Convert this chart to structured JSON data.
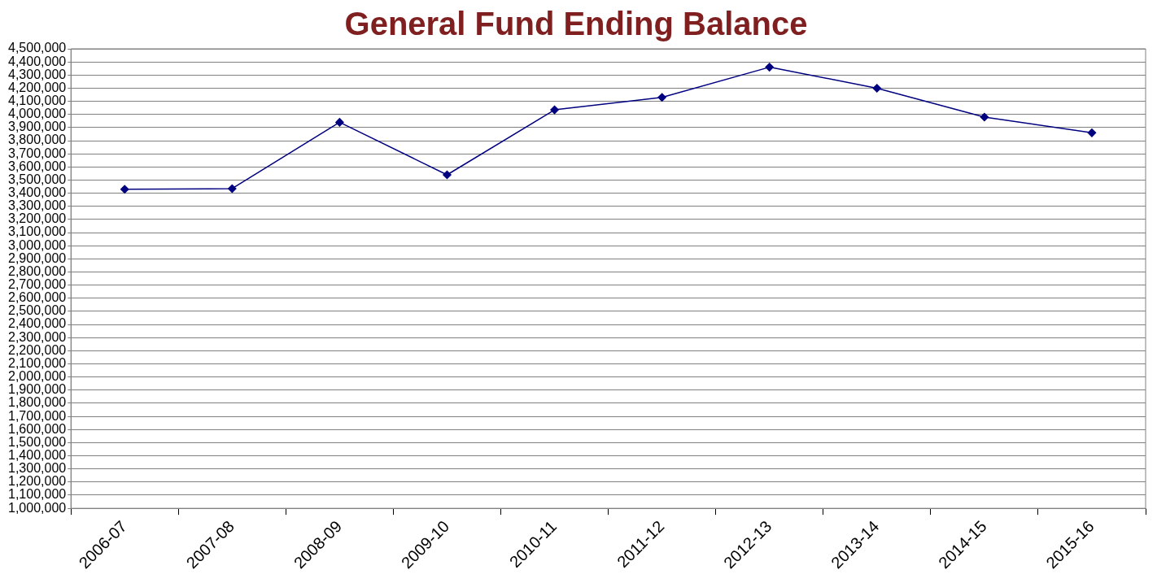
{
  "chart_data": {
    "type": "line",
    "title": "General Fund Ending Balance",
    "categories": [
      "2006-07",
      "2007-08",
      "2008-09",
      "2009-10",
      "2010-11",
      "2011-12",
      "2012-13",
      "2013-14",
      "2014-15",
      "2015-16"
    ],
    "series": [
      {
        "color": "#000080",
        "values": [
          3430000,
          3435000,
          3940000,
          3540000,
          4035000,
          4130000,
          4360000,
          4200000,
          3980000,
          3860000
        ]
      }
    ],
    "ylim": [
      1000000,
      4500000
    ],
    "yticks": [
      {
        "value": 1000000,
        "label": "1,000,000"
      },
      {
        "value": 1100000,
        "label": "1,100,000"
      },
      {
        "value": 1200000,
        "label": "1,200,000"
      },
      {
        "value": 1300000,
        "label": "1,300,000"
      },
      {
        "value": 1400000,
        "label": "1,400,000"
      },
      {
        "value": 1500000,
        "label": "1,500,000"
      },
      {
        "value": 1600000,
        "label": "1,600,000"
      },
      {
        "value": 1700000,
        "label": "1,700,000"
      },
      {
        "value": 1800000,
        "label": "1,800,000"
      },
      {
        "value": 1900000,
        "label": "1,900,000"
      },
      {
        "value": 2000000,
        "label": "2,000,000"
      },
      {
        "value": 2100000,
        "label": "2,100,000"
      },
      {
        "value": 2200000,
        "label": "2,200,000"
      },
      {
        "value": 2300000,
        "label": "2,300,000"
      },
      {
        "value": 2400000,
        "label": "2,400,000"
      },
      {
        "value": 2500000,
        "label": "2,500,000"
      },
      {
        "value": 2600000,
        "label": "2,600,000"
      },
      {
        "value": 2700000,
        "label": "2,700,000"
      },
      {
        "value": 2800000,
        "label": "2,800,000"
      },
      {
        "value": 2900000,
        "label": "2,900,000"
      },
      {
        "value": 3000000,
        "label": "3,000,000"
      },
      {
        "value": 3100000,
        "label": "3,100,000"
      },
      {
        "value": 3200000,
        "label": "3,200,000"
      },
      {
        "value": 3300000,
        "label": "3,300,000"
      },
      {
        "value": 3400000,
        "label": "3,400,000"
      },
      {
        "value": 3500000,
        "label": "3,500,000"
      },
      {
        "value": 3600000,
        "label": "3,600,000"
      },
      {
        "value": 3700000,
        "label": "3,700,000"
      },
      {
        "value": 3800000,
        "label": "3,800,000"
      },
      {
        "value": 3900000,
        "label": "3,900,000"
      },
      {
        "value": 4000000,
        "label": "4,000,000"
      },
      {
        "value": 4100000,
        "label": "4,100,000"
      },
      {
        "value": 4200000,
        "label": "4,200,000"
      },
      {
        "value": 4300000,
        "label": "4,300,000"
      },
      {
        "value": 4400000,
        "label": "4,400,000"
      },
      {
        "value": 4500000,
        "label": "4,500,000"
      }
    ],
    "grid": "y",
    "legend": false,
    "marker": "diamond",
    "line_style": "solid"
  }
}
